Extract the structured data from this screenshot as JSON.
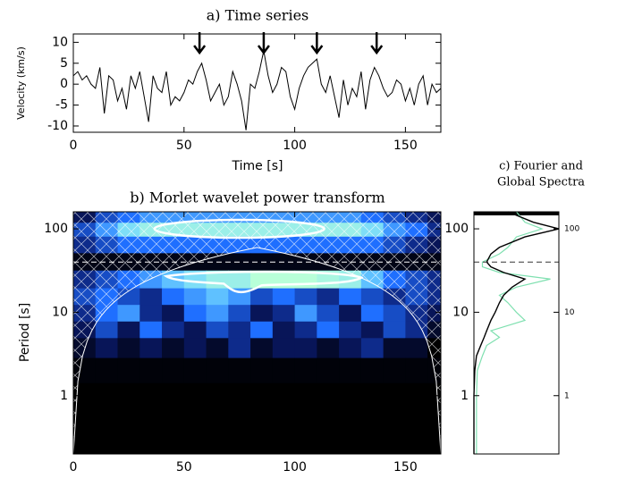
{
  "chart_data": [
    {
      "type": "line",
      "title": "a) Time series",
      "xlabel": "Time [s]",
      "ylabel": "Velocity (km/s)",
      "x": [
        0,
        2,
        4,
        6,
        8,
        10,
        12,
        14,
        16,
        18,
        20,
        22,
        24,
        26,
        28,
        30,
        32,
        34,
        36,
        38,
        40,
        42,
        44,
        46,
        48,
        50,
        52,
        54,
        56,
        58,
        60,
        62,
        64,
        66,
        68,
        70,
        72,
        74,
        76,
        78,
        80,
        82,
        84,
        86,
        88,
        90,
        92,
        94,
        96,
        98,
        100,
        102,
        104,
        106,
        108,
        110,
        112,
        114,
        116,
        118,
        120,
        122,
        124,
        126,
        128,
        130,
        132,
        134,
        136,
        138,
        140,
        142,
        144,
        146,
        148,
        150,
        152,
        154,
        156,
        158,
        160,
        162,
        164,
        166
      ],
      "values": [
        2,
        3,
        1,
        2,
        0,
        -1,
        4,
        -7,
        2,
        1,
        -4,
        -1,
        -6,
        2,
        -1,
        3,
        -3,
        -9,
        2,
        -1,
        -2,
        3,
        -5,
        -3,
        -4,
        -2,
        1,
        0,
        3,
        5,
        1,
        -4,
        -2,
        0,
        -5,
        -3,
        3,
        0,
        -4,
        -11,
        0,
        -1,
        3,
        8,
        2,
        -2,
        0,
        4,
        3,
        -3,
        -6,
        -1,
        2,
        4,
        5,
        6,
        0,
        -2,
        2,
        -3,
        -8,
        1,
        -5,
        -1,
        -3,
        3,
        -6,
        1,
        4,
        2,
        -1,
        -3,
        -2,
        1,
        0,
        -4,
        -1,
        -5,
        0,
        2,
        -5,
        0,
        -2,
        -1
      ],
      "color": "#000000",
      "arrow_x": [
        57,
        86,
        110,
        137
      ],
      "xlim": [
        0,
        166
      ],
      "ylim": [
        -11.5,
        12
      ],
      "xticks": [
        0,
        50,
        100,
        150
      ],
      "yticks": [
        -10,
        -5,
        0,
        5,
        10
      ]
    },
    {
      "type": "heatmap",
      "title": "b) Morlet wavelet power transform",
      "ylabel": "Period [s]",
      "times": [
        5,
        15,
        25,
        35,
        45,
        55,
        65,
        75,
        85,
        95,
        105,
        115,
        125,
        135,
        145,
        155,
        165
      ],
      "periods": [
        140,
        100,
        65,
        40,
        25,
        15,
        10,
        6,
        4,
        2,
        1,
        0.3
      ],
      "power": [
        [
          0.2,
          0.4,
          0.5,
          0.6,
          0.6,
          0.6,
          0.6,
          0.6,
          0.6,
          0.6,
          0.6,
          0.6,
          0.6,
          0.5,
          0.4,
          0.3,
          0.2
        ],
        [
          0.4,
          0.6,
          0.8,
          0.9,
          0.9,
          0.9,
          0.9,
          0.9,
          0.9,
          0.9,
          0.9,
          0.9,
          0.9,
          0.8,
          0.6,
          0.5,
          0.3
        ],
        [
          0.3,
          0.4,
          0.5,
          0.5,
          0.5,
          0.5,
          0.5,
          0.5,
          0.5,
          0.5,
          0.5,
          0.5,
          0.5,
          0.5,
          0.4,
          0.3,
          0.2
        ],
        [
          0.05,
          0.05,
          0.05,
          0.05,
          0.05,
          0.05,
          0.05,
          0.05,
          0.05,
          0.05,
          0.05,
          0.05,
          0.05,
          0.05,
          0.05,
          0.05,
          0.05
        ],
        [
          0.3,
          0.4,
          0.5,
          0.6,
          0.7,
          0.8,
          0.9,
          0.9,
          1,
          1,
          1,
          0.95,
          0.9,
          0.7,
          0.5,
          0.4,
          0.3
        ],
        [
          0.4,
          0.5,
          0.4,
          0.3,
          0.5,
          0.6,
          0.7,
          0.6,
          0.4,
          0.5,
          0.4,
          0.3,
          0.5,
          0.4,
          0.3,
          0.4,
          0.3
        ],
        [
          0.3,
          0.5,
          0.6,
          0.3,
          0.2,
          0.5,
          0.6,
          0.4,
          0.2,
          0.3,
          0.6,
          0.4,
          0.2,
          0.5,
          0.4,
          0.3,
          0.2
        ],
        [
          0.2,
          0.4,
          0.2,
          0.5,
          0.3,
          0.2,
          0.4,
          0.3,
          0.5,
          0.2,
          0.3,
          0.5,
          0.3,
          0.2,
          0.4,
          0.3,
          0.1
        ],
        [
          0.1,
          0.2,
          0.1,
          0.2,
          0.1,
          0.2,
          0.1,
          0.3,
          0.1,
          0.2,
          0.2,
          0.1,
          0.2,
          0.3,
          0.1,
          0.1,
          0
        ],
        [
          0.02,
          0.02,
          0.02,
          0.02,
          0.02,
          0.02,
          0.02,
          0.02,
          0.02,
          0.02,
          0.02,
          0.02,
          0.02,
          0.02,
          0.02,
          0.02,
          0.02
        ],
        [
          0,
          0,
          0,
          0,
          0,
          0,
          0,
          0,
          0,
          0,
          0,
          0,
          0,
          0,
          0,
          0,
          0
        ],
        [
          0,
          0,
          0,
          0,
          0,
          0,
          0,
          0,
          0,
          0,
          0,
          0,
          0,
          0,
          0,
          0,
          0
        ]
      ],
      "colors": [
        "#000000",
        "#0a1a6e",
        "#1f6fff",
        "#6fd6ff",
        "#b8ffd8"
      ],
      "dashed_period": 40,
      "xlim": [
        0,
        166
      ],
      "ylim": [
        0.2,
        160
      ],
      "log_y": true,
      "xticks": [
        0,
        50,
        100,
        150
      ],
      "yticks": [
        1,
        10,
        100
      ]
    },
    {
      "type": "line",
      "orientation": "horizontal",
      "title": [
        "c) Fourier and",
        "Global Spectra"
      ],
      "periods": [
        0.2,
        0.5,
        1,
        2,
        3,
        4,
        5,
        6,
        8,
        10,
        13,
        16,
        20,
        25,
        30,
        35,
        40,
        50,
        60,
        80,
        100,
        120,
        160
      ],
      "series": [
        {
          "color": "#7fe0b0",
          "values": [
            0.03,
            0.03,
            0.03,
            0.04,
            0.1,
            0.15,
            0.3,
            0.2,
            0.6,
            0.5,
            0.4,
            0.3,
            0.5,
            0.9,
            0.3,
            0.1,
            0.1,
            0.3,
            0.4,
            0.5,
            0.8,
            0.6,
            0.5
          ]
        },
        {
          "color": "#000000",
          "values": [
            0,
            0,
            0,
            0.01,
            0.03,
            0.08,
            0.12,
            0.15,
            0.2,
            0.25,
            0.3,
            0.35,
            0.45,
            0.6,
            0.35,
            0.2,
            0.15,
            0.2,
            0.3,
            0.6,
            1.0,
            0.7,
            0.4
          ]
        }
      ],
      "dashed_period": 40,
      "xlim": [
        0,
        1
      ],
      "ylim": [
        0.2,
        160
      ],
      "log_y": true,
      "yticks": [
        1,
        10,
        100
      ]
    }
  ]
}
